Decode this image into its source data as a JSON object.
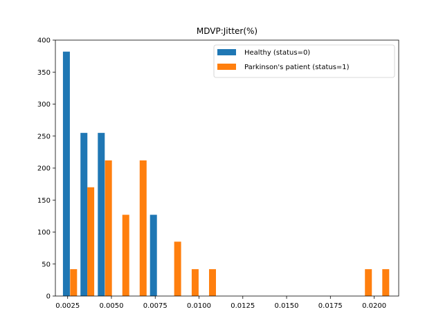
{
  "chart_data": {
    "type": "bar",
    "title": "MDVP:Jitter(%)",
    "xlabel": "",
    "ylabel": "",
    "xlim": [
      0.0018,
      0.0214
    ],
    "ylim": [
      0,
      400
    ],
    "x_ticks": [
      0.0025,
      0.005,
      0.0075,
      0.01,
      0.0125,
      0.015,
      0.0175,
      0.02
    ],
    "x_tick_labels": [
      "0.0025",
      "0.0050",
      "0.0075",
      "0.0100",
      "0.0125",
      "0.0150",
      "0.0175",
      "0.0200"
    ],
    "y_ticks": [
      0,
      50,
      100,
      150,
      200,
      250,
      300,
      350,
      400
    ],
    "y_tick_labels": [
      "0",
      "50",
      "100",
      "150",
      "200",
      "250",
      "300",
      "350",
      "400"
    ],
    "legend_position": "top-right",
    "series": [
      {
        "name": "Healthy (status=0)",
        "color": "#1f77b4",
        "x": [
          0.00243,
          0.00343,
          0.00442,
          0.0074
        ],
        "values": [
          382,
          255,
          255,
          127
        ]
      },
      {
        "name": "Parkinson's patient (status=1)",
        "color": "#ff7f0e",
        "x": [
          0.00284,
          0.00382,
          0.00483,
          0.00582,
          0.00681,
          0.00878,
          0.00978,
          0.01077,
          0.01967,
          0.02066
        ],
        "values": [
          42,
          170,
          212,
          127,
          212,
          85,
          42,
          42,
          42,
          42
        ]
      }
    ]
  }
}
